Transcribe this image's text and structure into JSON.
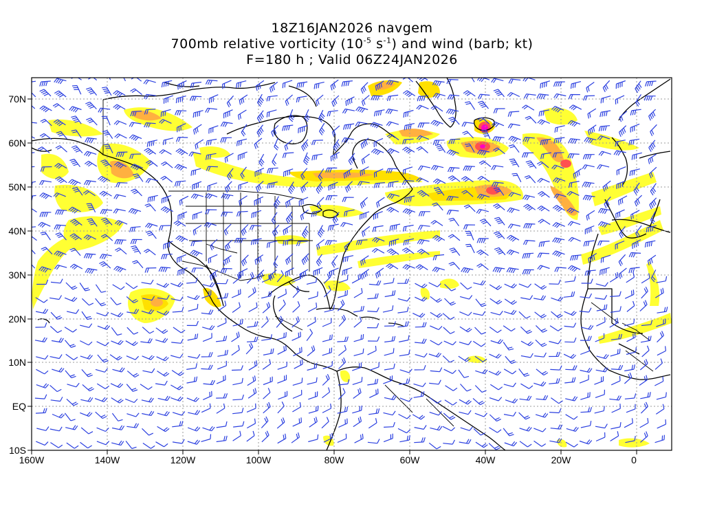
{
  "title": {
    "line1": "18Z16JAN2026 navgem",
    "line2_pre": "700mb relative vorticity (10",
    "line2_exp1": "-5",
    "line2_mid": " s",
    "line2_exp2": "-1",
    "line2_post": ") and wind (barb; kt)",
    "line3": "F=180 h ; Valid 06Z24JAN2026"
  },
  "axes": {
    "lon_labels": [
      "160W",
      "140W",
      "120W",
      "100W",
      "80W",
      "60W",
      "40W",
      "20W",
      "0"
    ],
    "lat_labels": [
      "70N",
      "60N",
      "50N",
      "40N",
      "30N",
      "20N",
      "10N",
      "EQ",
      "10S"
    ]
  },
  "colors": {
    "barb": "#2a3fe0",
    "vort_light": "#ffff33",
    "vort_yellow": "#ffe000",
    "vort_orange": "#ffb040",
    "vort_red": "#ff5050",
    "vort_magenta": "#ff00c0",
    "coast": "#000000",
    "grid": "#999999"
  }
}
